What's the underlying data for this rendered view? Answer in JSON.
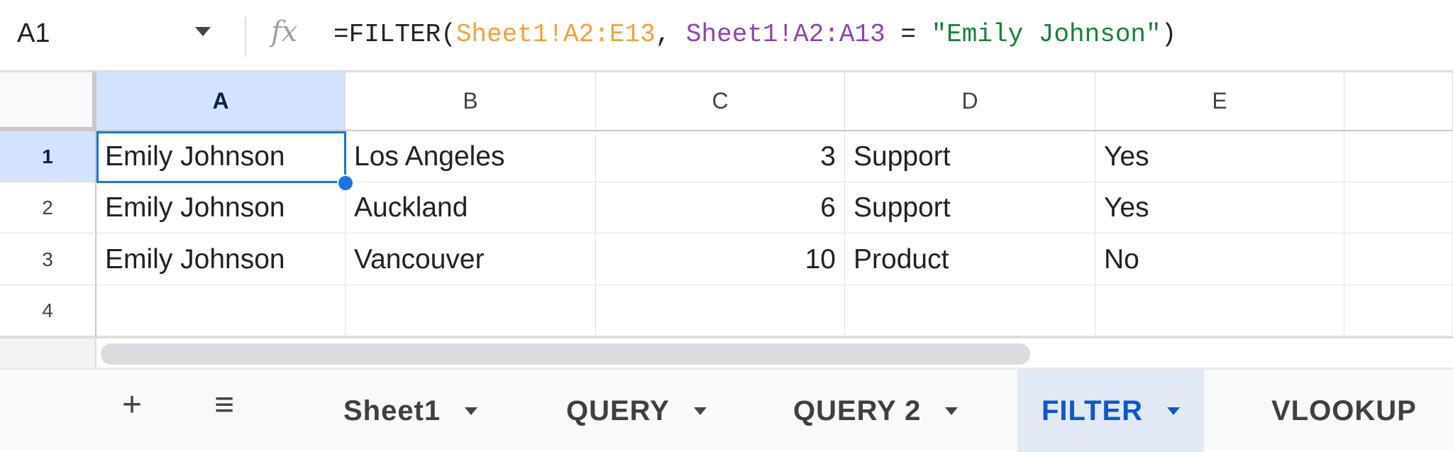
{
  "formula_bar": {
    "name_box": "A1",
    "fx_icon": "fx-icon",
    "formula_parts": [
      {
        "text": "=FILTER(",
        "color": "#202124"
      },
      {
        "text": "Sheet1!A2:E13",
        "color": "#f4a03a"
      },
      {
        "text": ", ",
        "color": "#202124"
      },
      {
        "text": "Sheet1!A2:A13",
        "color": "#8e44ad"
      },
      {
        "text": " = ",
        "color": "#202124"
      },
      {
        "text": "\"Emily Johnson\"",
        "color": "#188038"
      },
      {
        "text": ")",
        "color": "#202124"
      }
    ]
  },
  "columns": [
    "A",
    "B",
    "C",
    "D",
    "E",
    ""
  ],
  "rows": [
    {
      "num": "1",
      "cells": [
        "Emily Johnson",
        "Los Angeles",
        "3",
        "Support",
        "Yes",
        ""
      ]
    },
    {
      "num": "2",
      "cells": [
        "Emily Johnson",
        "Auckland",
        "6",
        "Support",
        "Yes",
        ""
      ]
    },
    {
      "num": "3",
      "cells": [
        "Emily Johnson",
        "Vancouver",
        "10",
        "Product",
        "No",
        ""
      ]
    },
    {
      "num": "4",
      "cells": [
        "",
        "",
        "",
        "",
        "",
        ""
      ]
    }
  ],
  "selected_cell": "A1",
  "sheet_tabs": {
    "add_label": "+",
    "menu_label": "≡",
    "tabs": [
      {
        "label": "Sheet1",
        "active": false
      },
      {
        "label": "QUERY",
        "active": false
      },
      {
        "label": "QUERY 2",
        "active": false
      },
      {
        "label": "FILTER",
        "active": true
      },
      {
        "label": "VLOOKUP",
        "active": false
      }
    ]
  },
  "colors": {
    "accent": "#1a73e8",
    "selected_header": "#d3e3fd",
    "active_tab": "#0b57d0"
  }
}
